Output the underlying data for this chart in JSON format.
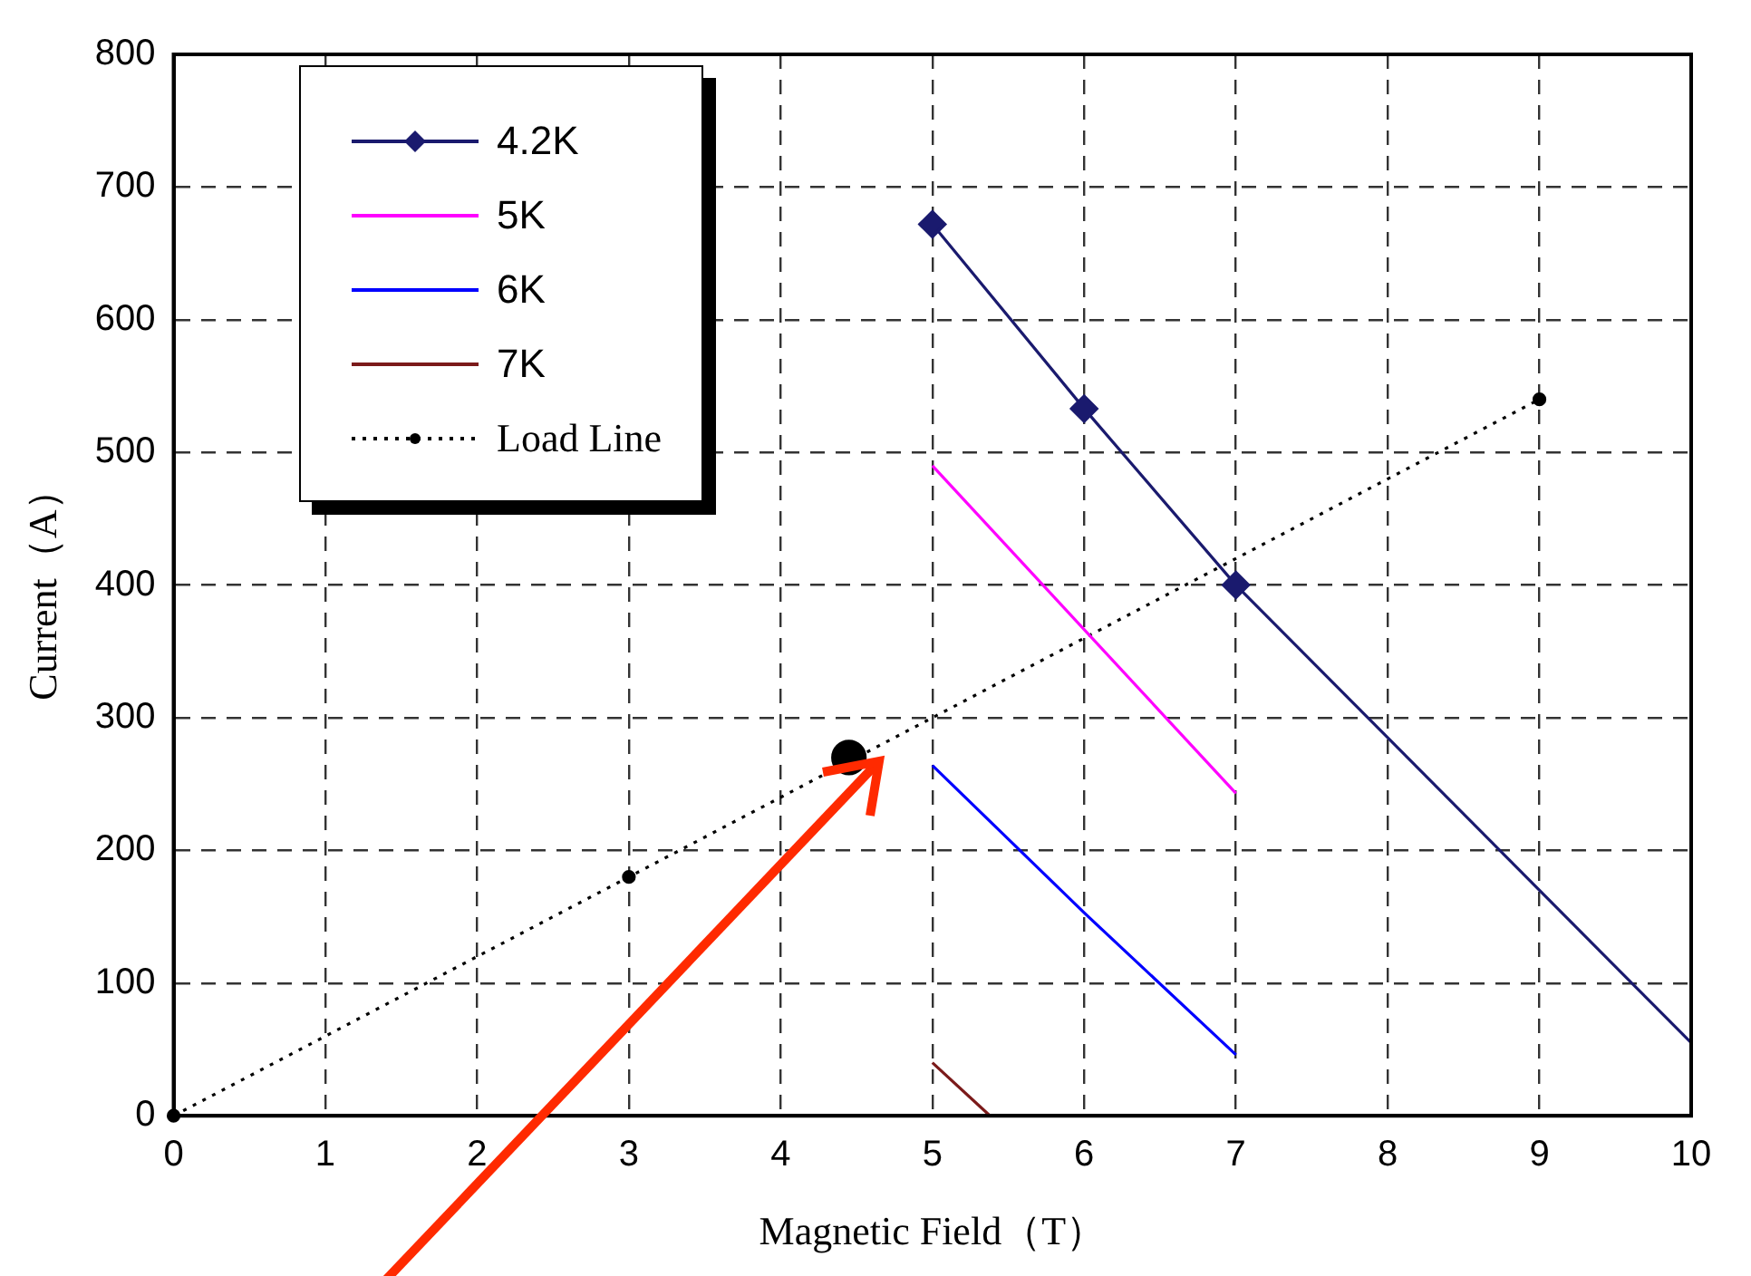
{
  "chart_data": {
    "type": "line",
    "xlabel": "Magnetic Field（T）",
    "ylabel": "Current（A）",
    "xlim": [
      0,
      10
    ],
    "ylim": [
      0,
      800
    ],
    "xticks": [
      0,
      1,
      2,
      3,
      4,
      5,
      6,
      7,
      8,
      9,
      10
    ],
    "yticks": [
      0,
      100,
      200,
      300,
      400,
      500,
      600,
      700,
      800
    ],
    "grid": true,
    "legend": "top left",
    "series": [
      {
        "name": "4.2K",
        "color": "#1a1a6e",
        "type": "line",
        "marker": "diamond",
        "line_style": "solid",
        "x": [
          5,
          6,
          7
        ],
        "values": [
          672,
          533,
          400
        ]
      },
      {
        "color": "#1a1a6e",
        "type": "line",
        "marker": "none",
        "line_style": "solid",
        "x": [
          7,
          10
        ],
        "values": [
          400,
          55
        ]
      },
      {
        "name": "5K",
        "color": "#ff00ff",
        "type": "line",
        "marker": "none",
        "line_style": "solid",
        "x": [
          5,
          7
        ],
        "values": [
          490,
          243
        ]
      },
      {
        "name": "6K",
        "color": "#0000ff",
        "type": "line",
        "marker": "none",
        "line_style": "solid",
        "x": [
          5,
          6,
          7
        ],
        "values": [
          264,
          153,
          46
        ]
      },
      {
        "name": "7K",
        "color": "#7b1a1a",
        "type": "line",
        "marker": "none",
        "line_style": "solid",
        "x": [
          5,
          5.38
        ],
        "values": [
          40,
          0
        ]
      },
      {
        "name": "Load Line",
        "color": "#000000",
        "type": "line",
        "marker": "circle",
        "line_style": "dotted",
        "x": [
          0,
          3,
          9
        ],
        "values": [
          0,
          180,
          540
        ]
      },
      {
        "color": "#000000",
        "type": "scatter",
        "marker": "circle",
        "x": [
          4.45
        ],
        "values": [
          270
        ]
      }
    ]
  }
}
